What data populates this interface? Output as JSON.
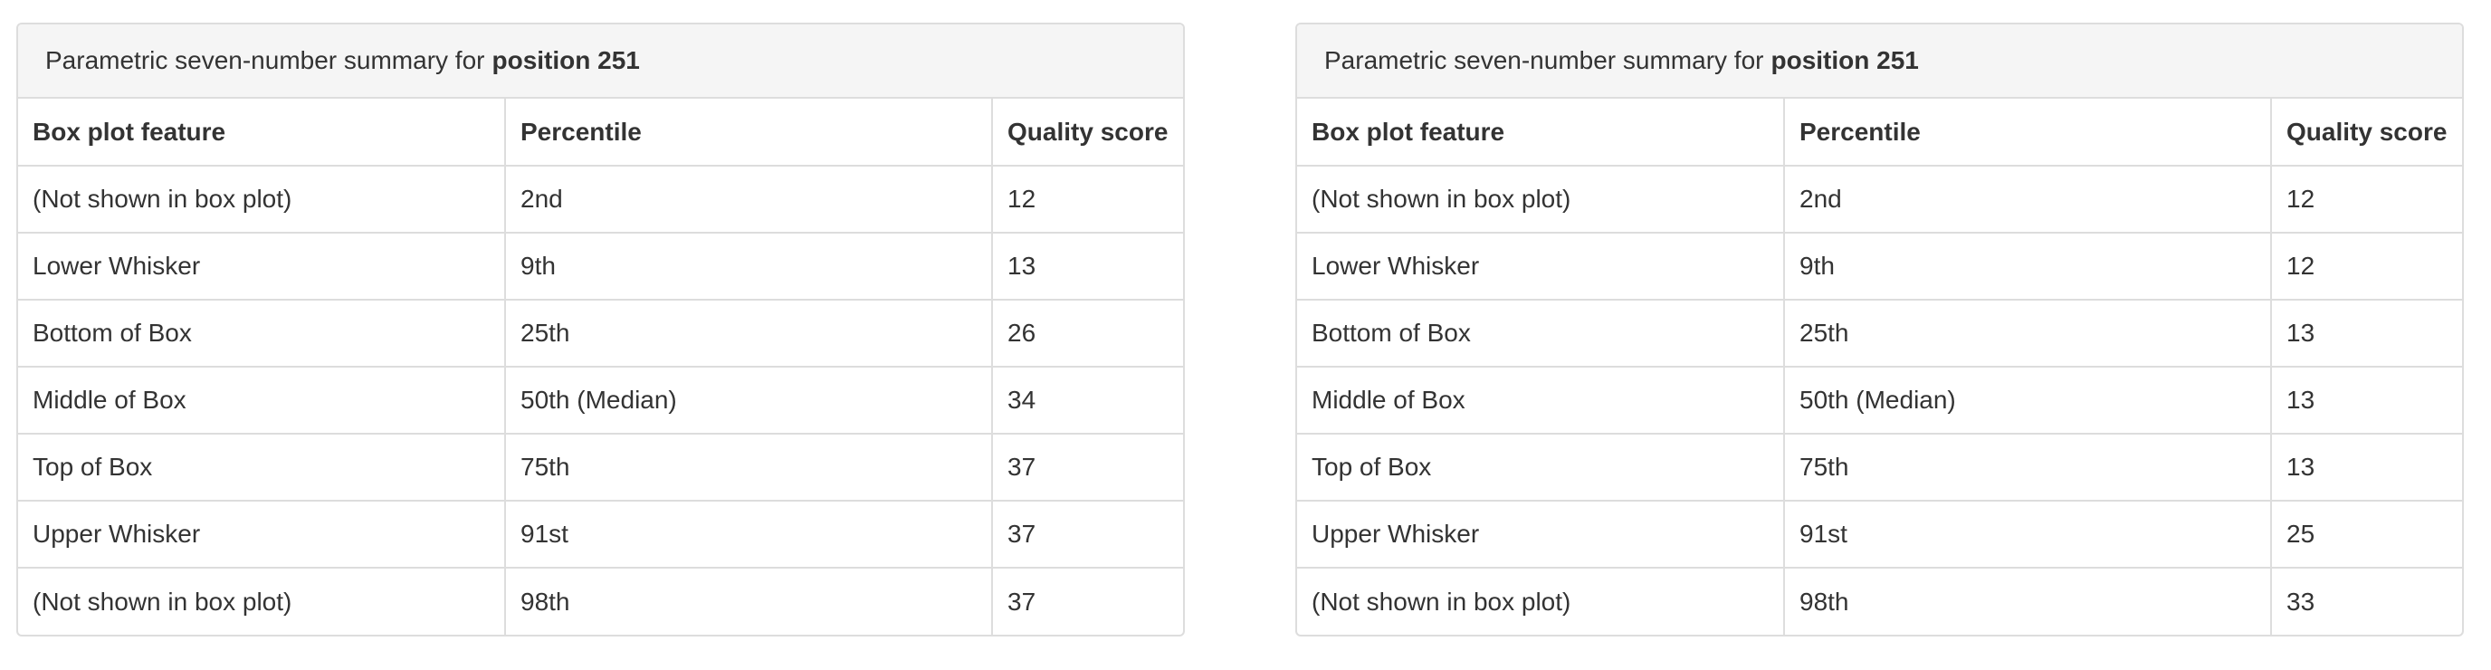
{
  "panels": [
    {
      "heading_prefix": "Parametric seven-number summary for",
      "heading_bold": "position 251",
      "columns": [
        "Box plot feature",
        "Percentile",
        "Quality score"
      ],
      "rows": [
        [
          "(Not shown in box plot)",
          "2nd",
          "12"
        ],
        [
          "Lower Whisker",
          "9th",
          "13"
        ],
        [
          "Bottom of Box",
          "25th",
          "26"
        ],
        [
          "Middle of Box",
          "50th (Median)",
          "34"
        ],
        [
          "Top of Box",
          "75th",
          "37"
        ],
        [
          "Upper Whisker",
          "91st",
          "37"
        ],
        [
          "(Not shown in box plot)",
          "98th",
          "37"
        ]
      ]
    },
    {
      "heading_prefix": "Parametric seven-number summary for",
      "heading_bold": "position 251",
      "columns": [
        "Box plot feature",
        "Percentile",
        "Quality score"
      ],
      "rows": [
        [
          "(Not shown in box plot)",
          "2nd",
          "12"
        ],
        [
          "Lower Whisker",
          "9th",
          "12"
        ],
        [
          "Bottom of Box",
          "25th",
          "13"
        ],
        [
          "Middle of Box",
          "50th (Median)",
          "13"
        ],
        [
          "Top of Box",
          "75th",
          "13"
        ],
        [
          "Upper Whisker",
          "91st",
          "25"
        ],
        [
          "(Not shown in box plot)",
          "98th",
          "33"
        ]
      ]
    }
  ]
}
